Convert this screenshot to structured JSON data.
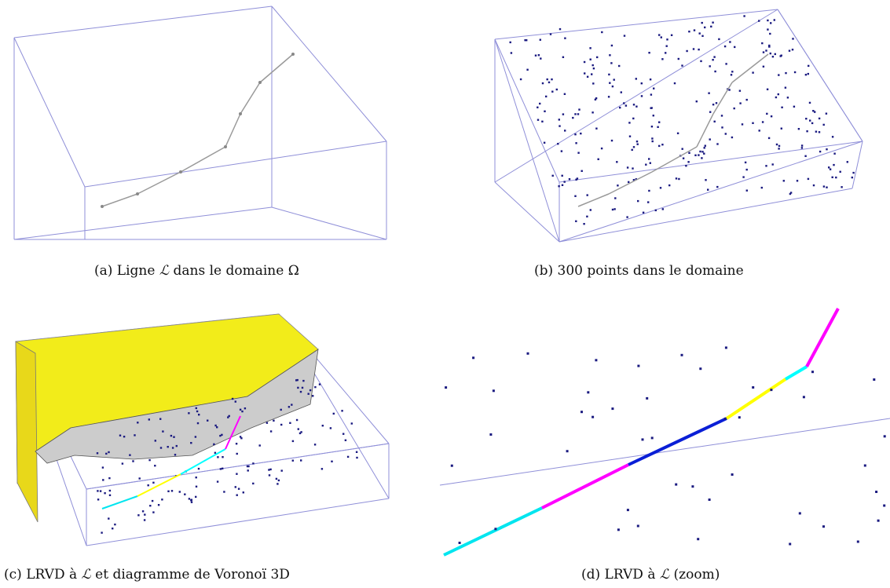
{
  "captions": {
    "a": {
      "prefix": "(a) Ligne ",
      "sym": "ℒ",
      "mid": " dans le domaine ",
      "sym2": "Ω",
      "suffix": ""
    },
    "b": {
      "text": "(b) 300 points dans le domaine"
    },
    "c": {
      "prefix": "(c) LRVD à ",
      "sym": "ℒ",
      "suffix": " et diagramme de Voronoï 3D"
    },
    "d": {
      "prefix": "(d) LRVD à ",
      "sym": "ℒ",
      "suffix": " (zoom)"
    }
  },
  "colors": {
    "box": "#8f8fd8",
    "line": "#9a9a9a",
    "points": "#1a1a80",
    "voronoi_top": "#f2ec1a",
    "segments": [
      "#00e5ef",
      "#ff00ff",
      "#0a1fd6",
      "#ffff00",
      "#00ffff",
      "#ff00ff",
      "#000000"
    ]
  },
  "figure_b": {
    "point_count": 300
  }
}
